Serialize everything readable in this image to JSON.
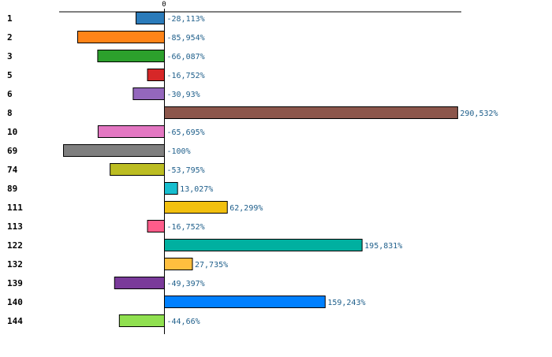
{
  "chart_data": {
    "type": "bar",
    "orientation": "horizontal",
    "title": "",
    "xlabel": "",
    "ylabel": "",
    "zero_tick_label": "0",
    "categories": [
      "1",
      "2",
      "3",
      "5",
      "6",
      "8",
      "10",
      "69",
      "74",
      "89",
      "111",
      "113",
      "122",
      "132",
      "139",
      "140",
      "144"
    ],
    "values": [
      -28.113,
      -85.954,
      -66.087,
      -16.752,
      -30.93,
      290.532,
      -65.695,
      -100,
      -53.795,
      13.027,
      62.299,
      -16.752,
      195.831,
      27.735,
      -49.397,
      159.243,
      -44.66
    ],
    "value_labels": [
      "-28,113%",
      "-85,954%",
      "-66,087%",
      "-16,752%",
      "-30,93%",
      "290,532%",
      "-65,695%",
      "-100%",
      "-53,795%",
      "13,027%",
      "62,299%",
      "-16,752%",
      "195,831%",
      "27,735%",
      "-49,397%",
      "159,243%",
      "-44,66%"
    ],
    "colors": [
      "#2b7bba",
      "#ff8418",
      "#2ca02c",
      "#d62728",
      "#9467bd",
      "#8c564b",
      "#e377c2",
      "#7f7f7f",
      "#bcbd22",
      "#17becf",
      "#f2c00f",
      "#ff5c8a",
      "#00b0a0",
      "#ffbf3f",
      "#7a3a9a",
      "#0080ff",
      "#90e050"
    ],
    "xlim": [
      -100,
      290.532
    ],
    "grid": false,
    "legend": "none"
  }
}
